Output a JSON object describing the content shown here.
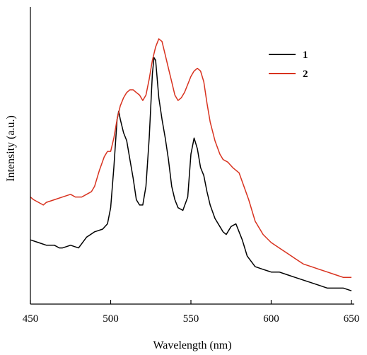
{
  "chart_data": {
    "type": "line",
    "xlabel": "Wavelength (nm)",
    "ylabel": "Intensity (a.u.)",
    "xlim": [
      450,
      650
    ],
    "x_ticks": [
      "450",
      "500",
      "550",
      "600",
      "650"
    ],
    "y_ticks": "none",
    "grid": false,
    "legend_position": "top-right",
    "series": [
      {
        "name": "1",
        "color": "#000000",
        "points": [
          [
            450,
            0.2
          ],
          [
            455,
            0.19
          ],
          [
            460,
            0.18
          ],
          [
            465,
            0.18
          ],
          [
            468,
            0.17
          ],
          [
            470,
            0.17
          ],
          [
            475,
            0.18
          ],
          [
            480,
            0.17
          ],
          [
            485,
            0.21
          ],
          [
            490,
            0.23
          ],
          [
            495,
            0.24
          ],
          [
            498,
            0.26
          ],
          [
            500,
            0.32
          ],
          [
            502,
            0.47
          ],
          [
            504,
            0.65
          ],
          [
            505,
            0.68
          ],
          [
            506,
            0.65
          ],
          [
            508,
            0.6
          ],
          [
            510,
            0.57
          ],
          [
            512,
            0.5
          ],
          [
            514,
            0.43
          ],
          [
            516,
            0.35
          ],
          [
            518,
            0.33
          ],
          [
            520,
            0.33
          ],
          [
            522,
            0.4
          ],
          [
            524,
            0.58
          ],
          [
            526,
            0.82
          ],
          [
            527,
            0.88
          ],
          [
            528,
            0.87
          ],
          [
            530,
            0.73
          ],
          [
            532,
            0.65
          ],
          [
            534,
            0.58
          ],
          [
            536,
            0.5
          ],
          [
            538,
            0.4
          ],
          [
            540,
            0.35
          ],
          [
            542,
            0.32
          ],
          [
            545,
            0.31
          ],
          [
            548,
            0.36
          ],
          [
            550,
            0.52
          ],
          [
            552,
            0.58
          ],
          [
            554,
            0.54
          ],
          [
            556,
            0.47
          ],
          [
            558,
            0.44
          ],
          [
            560,
            0.38
          ],
          [
            562,
            0.33
          ],
          [
            565,
            0.28
          ],
          [
            568,
            0.25
          ],
          [
            570,
            0.23
          ],
          [
            572,
            0.22
          ],
          [
            575,
            0.25
          ],
          [
            578,
            0.26
          ],
          [
            580,
            0.23
          ],
          [
            582,
            0.2
          ],
          [
            585,
            0.14
          ],
          [
            590,
            0.1
          ],
          [
            595,
            0.09
          ],
          [
            600,
            0.08
          ],
          [
            605,
            0.08
          ],
          [
            610,
            0.07
          ],
          [
            615,
            0.06
          ],
          [
            620,
            0.05
          ],
          [
            625,
            0.04
          ],
          [
            630,
            0.03
          ],
          [
            635,
            0.02
          ],
          [
            640,
            0.02
          ],
          [
            645,
            0.02
          ],
          [
            650,
            0.01
          ]
        ]
      },
      {
        "name": "2",
        "color": "#d8321f",
        "points": [
          [
            450,
            0.36
          ],
          [
            452,
            0.35
          ],
          [
            455,
            0.34
          ],
          [
            458,
            0.33
          ],
          [
            460,
            0.34
          ],
          [
            465,
            0.35
          ],
          [
            470,
            0.36
          ],
          [
            475,
            0.37
          ],
          [
            478,
            0.36
          ],
          [
            482,
            0.36
          ],
          [
            485,
            0.37
          ],
          [
            488,
            0.38
          ],
          [
            490,
            0.4
          ],
          [
            493,
            0.46
          ],
          [
            496,
            0.51
          ],
          [
            498,
            0.53
          ],
          [
            500,
            0.53
          ],
          [
            502,
            0.58
          ],
          [
            504,
            0.65
          ],
          [
            506,
            0.7
          ],
          [
            508,
            0.73
          ],
          [
            510,
            0.75
          ],
          [
            512,
            0.76
          ],
          [
            514,
            0.76
          ],
          [
            516,
            0.75
          ],
          [
            518,
            0.74
          ],
          [
            520,
            0.72
          ],
          [
            522,
            0.74
          ],
          [
            524,
            0.8
          ],
          [
            526,
            0.87
          ],
          [
            528,
            0.92
          ],
          [
            530,
            0.95
          ],
          [
            532,
            0.94
          ],
          [
            534,
            0.89
          ],
          [
            536,
            0.84
          ],
          [
            538,
            0.79
          ],
          [
            540,
            0.74
          ],
          [
            542,
            0.72
          ],
          [
            544,
            0.73
          ],
          [
            546,
            0.75
          ],
          [
            548,
            0.78
          ],
          [
            550,
            0.81
          ],
          [
            552,
            0.83
          ],
          [
            554,
            0.84
          ],
          [
            556,
            0.83
          ],
          [
            558,
            0.79
          ],
          [
            560,
            0.71
          ],
          [
            562,
            0.64
          ],
          [
            565,
            0.57
          ],
          [
            568,
            0.52
          ],
          [
            570,
            0.5
          ],
          [
            573,
            0.49
          ],
          [
            576,
            0.47
          ],
          [
            580,
            0.45
          ],
          [
            583,
            0.4
          ],
          [
            586,
            0.35
          ],
          [
            590,
            0.27
          ],
          [
            595,
            0.22
          ],
          [
            600,
            0.19
          ],
          [
            605,
            0.17
          ],
          [
            610,
            0.15
          ],
          [
            615,
            0.13
          ],
          [
            620,
            0.11
          ],
          [
            625,
            0.1
          ],
          [
            630,
            0.09
          ],
          [
            635,
            0.08
          ],
          [
            640,
            0.07
          ],
          [
            645,
            0.06
          ],
          [
            650,
            0.06
          ]
        ]
      }
    ]
  }
}
